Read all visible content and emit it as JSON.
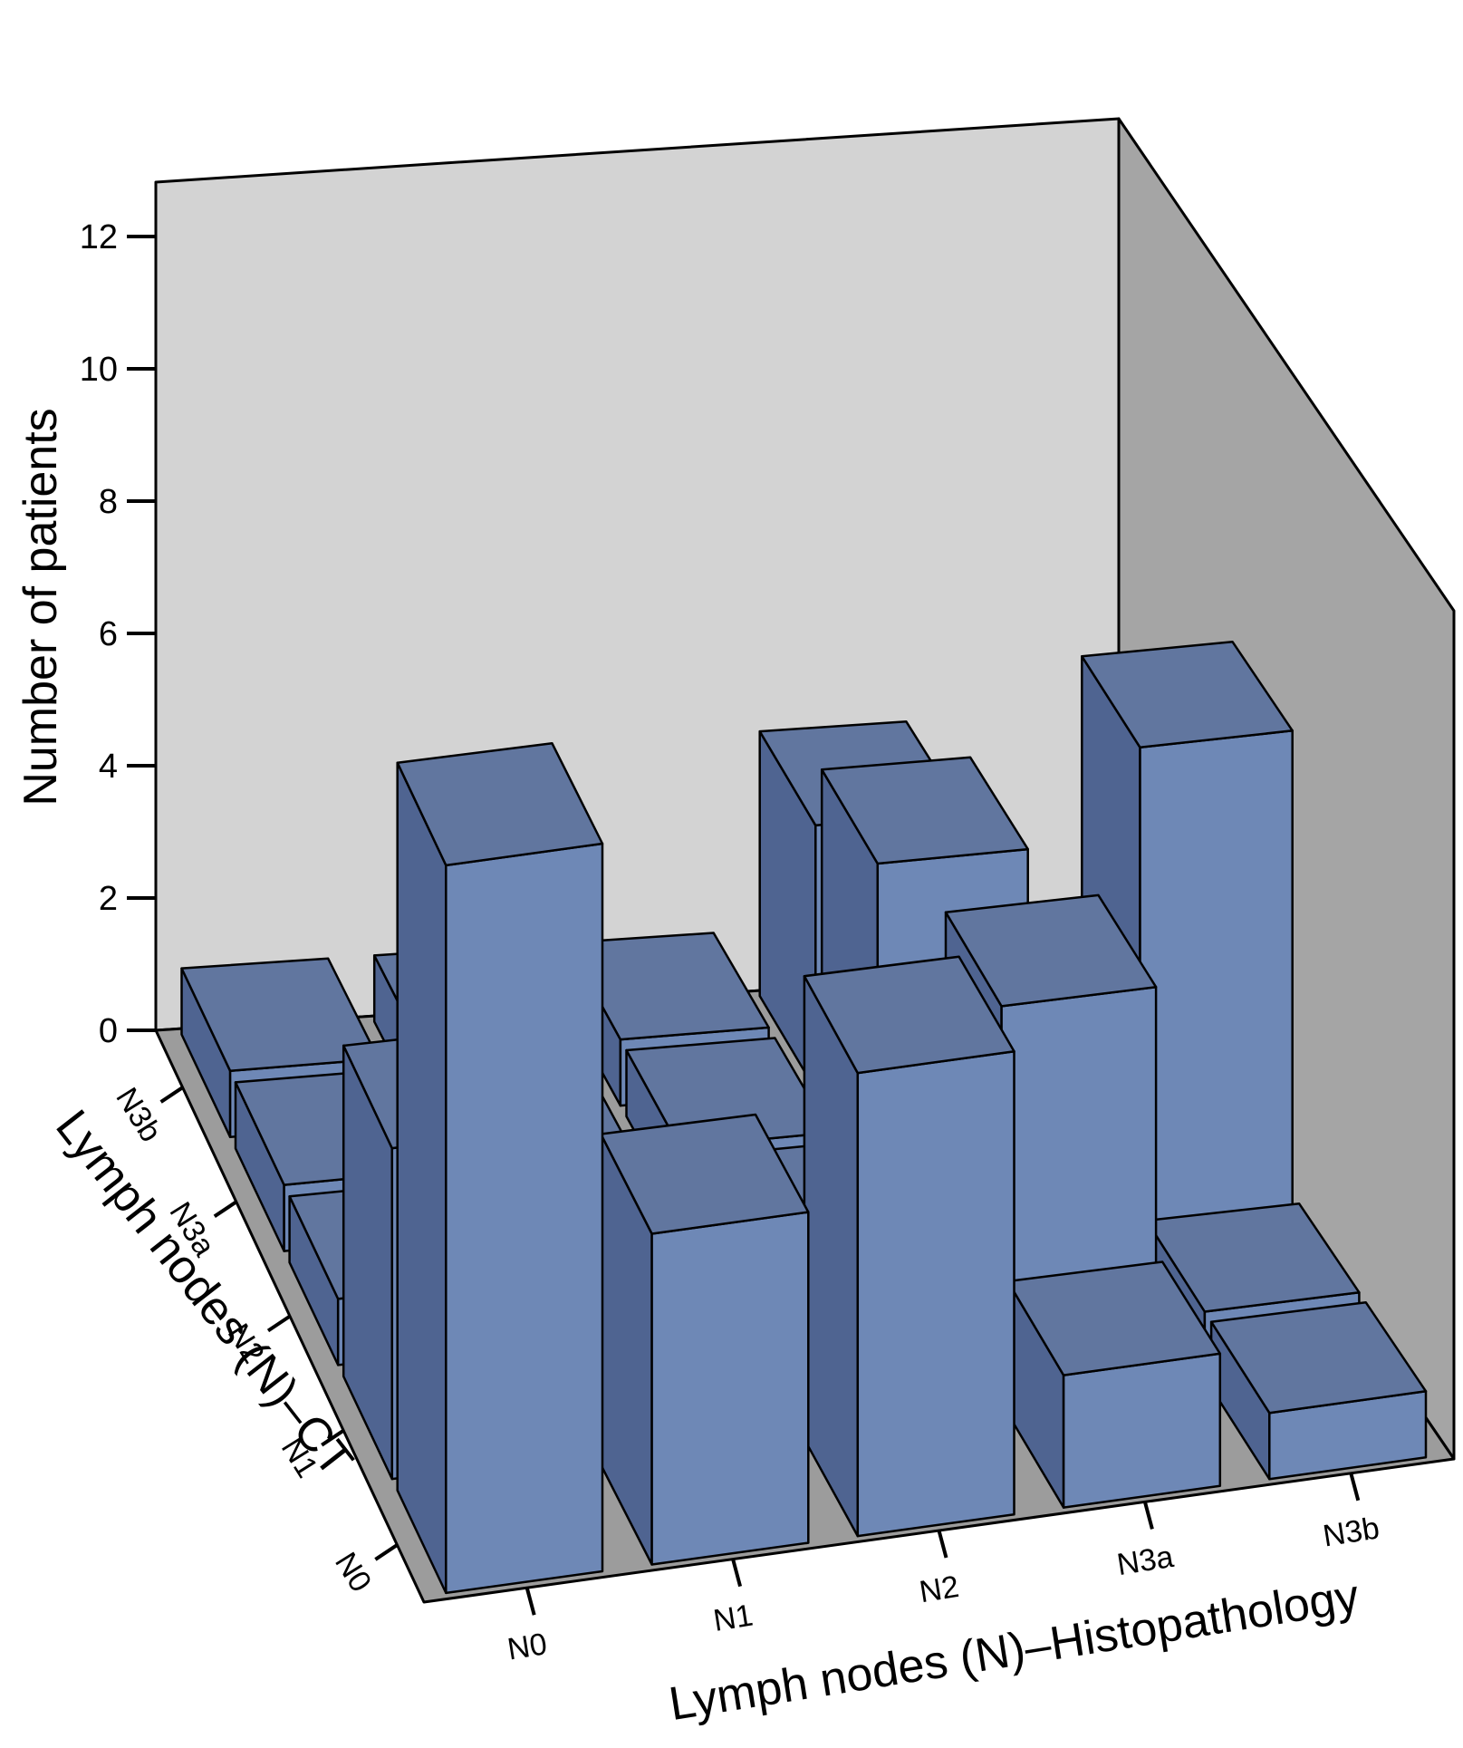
{
  "chart_data": {
    "type": "bar3d",
    "zlabel": "Number of patients",
    "xlabel": "Lymph nodes (N)–Histopathology",
    "ylabel": "Lymph nodes (N)–CT",
    "x_categories": [
      "N0",
      "N1",
      "N2",
      "N3a",
      "N3b"
    ],
    "y_categories": [
      "N0",
      "N1",
      "N2",
      "N3a",
      "N3b"
    ],
    "zlim": [
      0,
      12
    ],
    "zticks": [
      0,
      2,
      4,
      6,
      8,
      10,
      12
    ],
    "bars": [
      {
        "histo": "N0",
        "ct": "N0",
        "value": 11
      },
      {
        "histo": "N0",
        "ct": "N1",
        "value": 5
      },
      {
        "histo": "N0",
        "ct": "N2",
        "value": 1
      },
      {
        "histo": "N0",
        "ct": "N3a",
        "value": 1
      },
      {
        "histo": "N0",
        "ct": "N3b",
        "value": 1
      },
      {
        "histo": "N1",
        "ct": "N0",
        "value": 5
      },
      {
        "histo": "N1",
        "ct": "N1",
        "value": 1
      },
      {
        "histo": "N1",
        "ct": "N2",
        "value": 1
      },
      {
        "histo": "N1",
        "ct": "N3a",
        "value": 1
      },
      {
        "histo": "N1",
        "ct": "N3b",
        "value": 1
      },
      {
        "histo": "N2",
        "ct": "N0",
        "value": 7
      },
      {
        "histo": "N2",
        "ct": "N1",
        "value": 1
      },
      {
        "histo": "N2",
        "ct": "N2",
        "value": 1
      },
      {
        "histo": "N2",
        "ct": "N3a",
        "value": 1
      },
      {
        "histo": "N2",
        "ct": "N3b",
        "value": 1
      },
      {
        "histo": "N3a",
        "ct": "N0",
        "value": 2
      },
      {
        "histo": "N3a",
        "ct": "N1",
        "value": 6
      },
      {
        "histo": "N3a",
        "ct": "N2",
        "value": 1
      },
      {
        "histo": "N3a",
        "ct": "N3a",
        "value": 5
      },
      {
        "histo": "N3a",
        "ct": "N3b",
        "value": 4
      },
      {
        "histo": "N3b",
        "ct": "N0",
        "value": 1
      },
      {
        "histo": "N3b",
        "ct": "N1",
        "value": 1
      },
      {
        "histo": "N3b",
        "ct": "N2",
        "value": 8
      },
      {
        "histo": "N3b",
        "ct": "N3a",
        "value": 1
      },
      {
        "histo": "N3b",
        "ct": "N3b",
        "value": 1
      }
    ],
    "colors": {
      "bar_front": "#6e88b6",
      "bar_side": "#4f6491",
      "bar_top": "#61769f",
      "edge": "#000000",
      "back_wall": "#d3d3d3",
      "side_wall": "#a5a5a5",
      "floor": "#9c9c9c"
    },
    "grid": false,
    "legend": "none"
  }
}
